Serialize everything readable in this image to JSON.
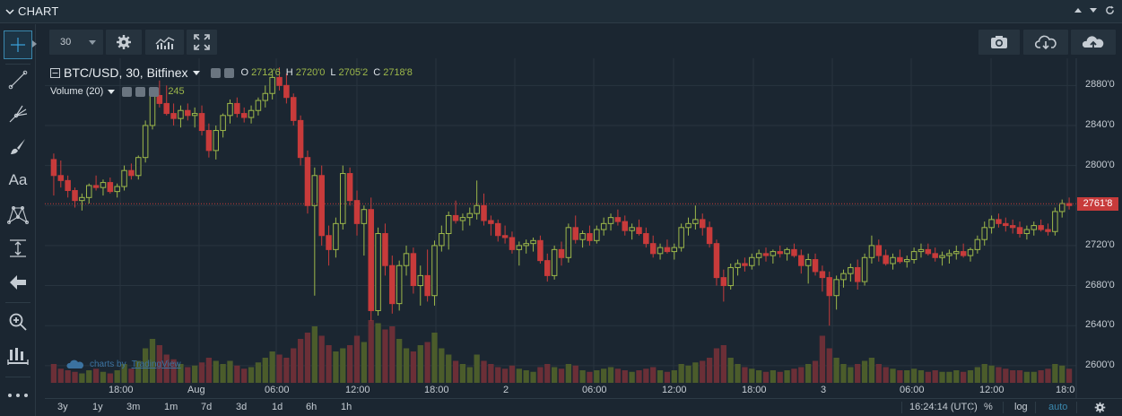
{
  "panel": {
    "title": "CHART"
  },
  "toolbar": {
    "interval_value": "30"
  },
  "legend": {
    "symbol": "BTC/USD, 30, Bitfinex",
    "o_label": "O",
    "o_value": "2712'6",
    "h_label": "H",
    "h_value": "2720'0",
    "l_label": "L",
    "l_value": "2705'2",
    "c_label": "C",
    "c_value": "2718'8",
    "volume_label": "Volume (20)",
    "volume_value": "245"
  },
  "watermark": {
    "prefix": "charts by",
    "brand": "TradingView"
  },
  "bottom_bar": {
    "ranges": [
      "3y",
      "1y",
      "3m",
      "1m",
      "7d",
      "3d",
      "1d",
      "6h",
      "1h"
    ],
    "time": "16:24:14 (UTC)",
    "percent": "%",
    "log": "log",
    "auto": "auto"
  },
  "colors": {
    "up": "#9db84a",
    "down": "#c83b3b",
    "up_volume": "#4b5c2b",
    "down_volume": "#6b2f37",
    "accent": "#3a87ad",
    "background": "#1b2631",
    "grid": "#28343f"
  },
  "icons": {
    "left_tools": [
      "crosshair-icon",
      "trend-line-icon",
      "pitchfork-icon",
      "brush-icon",
      "text-icon",
      "pattern-icon",
      "measure-icon",
      "arrow-left-icon",
      "zoom-in-icon",
      "ruler-icon",
      "more-icon"
    ],
    "toolbar": [
      "settings-icon",
      "indicators-icon",
      "fullscreen-icon",
      "camera-icon",
      "cloud-download-icon",
      "cloud-upload-icon"
    ]
  },
  "chart_data": {
    "type": "candlestick",
    "price_ylim": [
      2590,
      2900
    ],
    "y_ticks": [
      2600,
      2640,
      2680,
      2720,
      2760,
      2800,
      2840,
      2880
    ],
    "y_tick_labels": [
      "2600'0",
      "2640'0",
      "2680'0",
      "2720'0",
      "2760'0",
      "2800'0",
      "2840'0",
      "2880'0"
    ],
    "x_tick_labels": [
      "18:00",
      "Aug",
      "06:00",
      "12:00",
      "18:00",
      "2",
      "06:00",
      "12:00",
      "18:00",
      "3",
      "06:00",
      "12:00",
      "18:0"
    ],
    "last_price": 2761.8,
    "last_price_label": "2761'8",
    "grid": true,
    "legend_position": "top-left",
    "candles": [
      [
        2806,
        2812,
        2770,
        2790,
        12
      ],
      [
        2790,
        2805,
        2778,
        2785,
        9
      ],
      [
        2785,
        2790,
        2768,
        2775,
        8
      ],
      [
        2775,
        2778,
        2758,
        2765,
        7
      ],
      [
        2765,
        2772,
        2755,
        2768,
        6
      ],
      [
        2768,
        2782,
        2762,
        2780,
        8
      ],
      [
        2780,
        2790,
        2775,
        2778,
        9
      ],
      [
        2778,
        2786,
        2770,
        2783,
        7
      ],
      [
        2783,
        2788,
        2772,
        2774,
        6
      ],
      [
        2774,
        2782,
        2768,
        2779,
        8
      ],
      [
        2779,
        2800,
        2775,
        2795,
        12
      ],
      [
        2795,
        2802,
        2786,
        2790,
        9
      ],
      [
        2790,
        2810,
        2786,
        2808,
        14
      ],
      [
        2808,
        2845,
        2803,
        2840,
        22
      ],
      [
        2840,
        2875,
        2836,
        2870,
        28
      ],
      [
        2870,
        2885,
        2858,
        2862,
        24
      ],
      [
        2862,
        2880,
        2850,
        2852,
        18
      ],
      [
        2852,
        2862,
        2840,
        2847,
        15
      ],
      [
        2847,
        2860,
        2838,
        2855,
        12
      ],
      [
        2855,
        2862,
        2845,
        2850,
        10
      ],
      [
        2850,
        2858,
        2838,
        2852,
        11
      ],
      [
        2852,
        2860,
        2830,
        2835,
        13
      ],
      [
        2835,
        2842,
        2808,
        2815,
        16
      ],
      [
        2815,
        2840,
        2806,
        2835,
        14
      ],
      [
        2835,
        2852,
        2828,
        2850,
        12
      ],
      [
        2850,
        2866,
        2842,
        2862,
        14
      ],
      [
        2862,
        2868,
        2848,
        2852,
        11
      ],
      [
        2852,
        2858,
        2843,
        2848,
        9
      ],
      [
        2848,
        2860,
        2842,
        2855,
        10
      ],
      [
        2855,
        2868,
        2850,
        2865,
        13
      ],
      [
        2865,
        2880,
        2858,
        2872,
        16
      ],
      [
        2872,
        2895,
        2866,
        2888,
        20
      ],
      [
        2888,
        2898,
        2875,
        2880,
        18
      ],
      [
        2880,
        2892,
        2862,
        2868,
        16
      ],
      [
        2868,
        2872,
        2840,
        2845,
        22
      ],
      [
        2845,
        2850,
        2800,
        2808,
        28
      ],
      [
        2808,
        2815,
        2752,
        2760,
        32
      ],
      [
        2760,
        2798,
        2670,
        2790,
        36
      ],
      [
        2790,
        2800,
        2720,
        2730,
        30
      ],
      [
        2730,
        2740,
        2700,
        2716,
        24
      ],
      [
        2716,
        2748,
        2708,
        2742,
        20
      ],
      [
        2742,
        2800,
        2736,
        2792,
        22
      ],
      [
        2792,
        2798,
        2760,
        2765,
        24
      ],
      [
        2765,
        2775,
        2730,
        2742,
        30
      ],
      [
        2742,
        2760,
        2710,
        2756,
        26
      ],
      [
        2756,
        2768,
        2645,
        2655,
        40
      ],
      [
        2655,
        2738,
        2650,
        2732,
        38
      ],
      [
        2732,
        2742,
        2690,
        2700,
        34
      ],
      [
        2700,
        2710,
        2652,
        2662,
        36
      ],
      [
        2662,
        2705,
        2655,
        2700,
        28
      ],
      [
        2700,
        2720,
        2690,
        2712,
        22
      ],
      [
        2712,
        2718,
        2672,
        2680,
        20
      ],
      [
        2680,
        2700,
        2660,
        2690,
        24
      ],
      [
        2690,
        2716,
        2664,
        2670,
        26
      ],
      [
        2670,
        2725,
        2660,
        2720,
        32
      ],
      [
        2720,
        2740,
        2714,
        2732,
        22
      ],
      [
        2732,
        2754,
        2716,
        2750,
        18
      ],
      [
        2750,
        2765,
        2742,
        2745,
        14
      ],
      [
        2745,
        2752,
        2735,
        2748,
        12
      ],
      [
        2748,
        2758,
        2740,
        2752,
        10
      ],
      [
        2752,
        2785,
        2746,
        2760,
        18
      ],
      [
        2760,
        2772,
        2740,
        2745,
        14
      ],
      [
        2745,
        2750,
        2730,
        2742,
        12
      ],
      [
        2742,
        2746,
        2724,
        2730,
        10
      ],
      [
        2730,
        2740,
        2722,
        2728,
        9
      ],
      [
        2728,
        2734,
        2712,
        2716,
        11
      ],
      [
        2716,
        2724,
        2700,
        2720,
        9
      ],
      [
        2720,
        2726,
        2712,
        2722,
        8
      ],
      [
        2722,
        2728,
        2714,
        2725,
        7
      ],
      [
        2725,
        2730,
        2702,
        2705,
        10
      ],
      [
        2705,
        2712,
        2684,
        2690,
        12
      ],
      [
        2690,
        2720,
        2686,
        2716,
        10
      ],
      [
        2716,
        2724,
        2700,
        2708,
        9
      ],
      [
        2708,
        2742,
        2703,
        2738,
        12
      ],
      [
        2738,
        2750,
        2722,
        2726,
        11
      ],
      [
        2726,
        2735,
        2718,
        2732,
        8
      ],
      [
        2732,
        2740,
        2720,
        2725,
        7
      ],
      [
        2725,
        2740,
        2722,
        2736,
        8
      ],
      [
        2736,
        2748,
        2730,
        2742,
        9
      ],
      [
        2742,
        2752,
        2735,
        2748,
        10
      ],
      [
        2748,
        2756,
        2740,
        2744,
        9
      ],
      [
        2744,
        2750,
        2730,
        2735,
        8
      ],
      [
        2735,
        2742,
        2726,
        2738,
        7
      ],
      [
        2738,
        2746,
        2730,
        2732,
        8
      ],
      [
        2732,
        2738,
        2718,
        2722,
        9
      ],
      [
        2722,
        2730,
        2708,
        2712,
        10
      ],
      [
        2712,
        2722,
        2706,
        2718,
        8
      ],
      [
        2718,
        2726,
        2712,
        2714,
        7
      ],
      [
        2714,
        2722,
        2706,
        2718,
        8
      ],
      [
        2718,
        2742,
        2714,
        2738,
        12
      ],
      [
        2738,
        2748,
        2730,
        2742,
        11
      ],
      [
        2742,
        2760,
        2736,
        2746,
        13
      ],
      [
        2746,
        2752,
        2730,
        2738,
        14
      ],
      [
        2738,
        2744,
        2718,
        2722,
        16
      ],
      [
        2722,
        2726,
        2680,
        2688,
        22
      ],
      [
        2688,
        2696,
        2664,
        2680,
        24
      ],
      [
        2680,
        2702,
        2676,
        2698,
        16
      ],
      [
        2698,
        2706,
        2690,
        2702,
        12
      ],
      [
        2702,
        2708,
        2694,
        2700,
        10
      ],
      [
        2700,
        2712,
        2696,
        2708,
        9
      ],
      [
        2708,
        2716,
        2700,
        2712,
        8
      ],
      [
        2712,
        2718,
        2704,
        2710,
        7
      ],
      [
        2710,
        2716,
        2702,
        2714,
        8
      ],
      [
        2714,
        2720,
        2708,
        2712,
        7
      ],
      [
        2712,
        2718,
        2705,
        2716,
        8
      ],
      [
        2716,
        2722,
        2708,
        2710,
        9
      ],
      [
        2710,
        2716,
        2692,
        2700,
        10
      ],
      [
        2700,
        2712,
        2682,
        2706,
        12
      ],
      [
        2706,
        2712,
        2690,
        2694,
        14
      ],
      [
        2694,
        2700,
        2674,
        2688,
        30
      ],
      [
        2688,
        2694,
        2640,
        2670,
        22
      ],
      [
        2670,
        2690,
        2656,
        2686,
        16
      ],
      [
        2686,
        2696,
        2678,
        2692,
        12
      ],
      [
        2692,
        2702,
        2684,
        2698,
        10
      ],
      [
        2698,
        2706,
        2676,
        2684,
        12
      ],
      [
        2684,
        2712,
        2680,
        2708,
        14
      ],
      [
        2708,
        2730,
        2702,
        2720,
        16
      ],
      [
        2720,
        2726,
        2704,
        2710,
        12
      ],
      [
        2710,
        2716,
        2700,
        2702,
        10
      ],
      [
        2702,
        2712,
        2696,
        2708,
        9
      ],
      [
        2708,
        2716,
        2702,
        2704,
        8
      ],
      [
        2704,
        2710,
        2698,
        2706,
        8
      ],
      [
        2706,
        2718,
        2702,
        2714,
        9
      ],
      [
        2714,
        2722,
        2708,
        2716,
        8
      ],
      [
        2716,
        2722,
        2710,
        2712,
        7
      ],
      [
        2712,
        2718,
        2704,
        2708,
        8
      ],
      [
        2708,
        2714,
        2700,
        2710,
        7
      ],
      [
        2710,
        2716,
        2702,
        2712,
        7
      ],
      [
        2712,
        2720,
        2706,
        2714,
        8
      ],
      [
        2714,
        2722,
        2708,
        2710,
        7
      ],
      [
        2710,
        2718,
        2704,
        2716,
        8
      ],
      [
        2716,
        2730,
        2712,
        2726,
        10
      ],
      [
        2726,
        2744,
        2720,
        2738,
        12
      ],
      [
        2738,
        2750,
        2732,
        2746,
        11
      ],
      [
        2746,
        2752,
        2738,
        2742,
        10
      ],
      [
        2742,
        2748,
        2734,
        2740,
        9
      ],
      [
        2740,
        2746,
        2732,
        2738,
        8
      ],
      [
        2738,
        2744,
        2728,
        2732,
        8
      ],
      [
        2732,
        2740,
        2726,
        2736,
        7
      ],
      [
        2736,
        2744,
        2730,
        2740,
        7
      ],
      [
        2740,
        2746,
        2734,
        2736,
        8
      ],
      [
        2736,
        2742,
        2730,
        2734,
        9
      ],
      [
        2734,
        2758,
        2730,
        2754,
        12
      ],
      [
        2754,
        2766,
        2748,
        2762,
        11
      ],
      [
        2762,
        2768,
        2756,
        2760,
        9
      ]
    ]
  }
}
